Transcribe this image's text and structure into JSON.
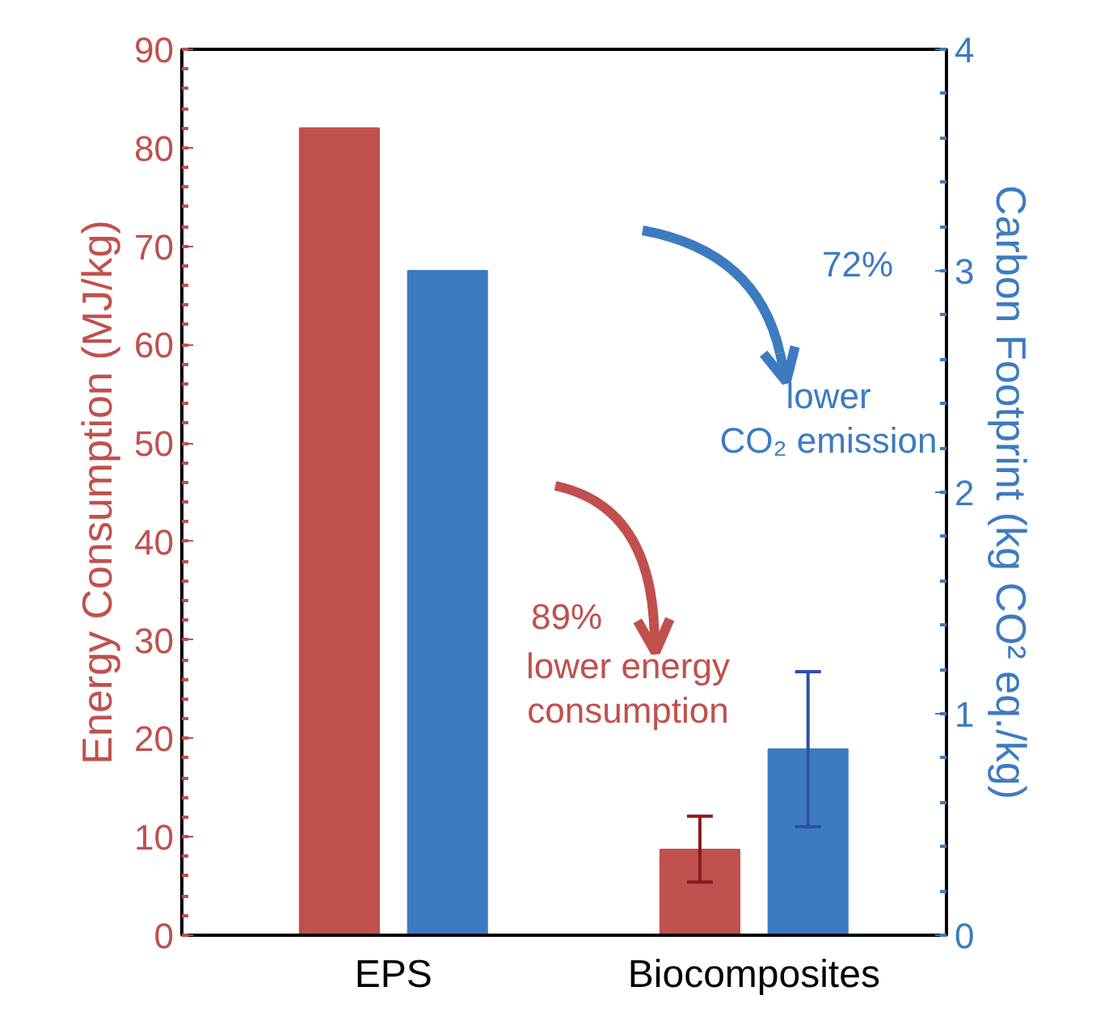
{
  "chart_data": {
    "type": "bar",
    "categories": [
      "EPS",
      "Biocomposites"
    ],
    "series": [
      {
        "color": "#c0504d",
        "values": [
          82,
          8.7
        ],
        "errors": [
          null,
          [
            5.4,
            12.1
          ]
        ]
      },
      {
        "color": "#3d7bc0",
        "values": [
          3.0,
          0.84
        ],
        "errors": [
          null,
          [
            0.49,
            1.19
          ]
        ],
        "axis": "y2"
      }
    ],
    "ylabel": "Energy Consumption (MJ/kg)",
    "y2label": "Carbon Footprint (kg CO² eq./kg)",
    "ylim": [
      0,
      90
    ],
    "yticks": [
      0,
      10,
      20,
      30,
      40,
      50,
      60,
      70,
      80,
      90
    ],
    "y2lim": [
      0,
      4
    ],
    "y2ticks": [
      0,
      1,
      2,
      3,
      4
    ],
    "annotations": [
      "72%",
      "lower\nCO₂ emission",
      "89%",
      "lower energy\nconsumption"
    ],
    "grid": false
  }
}
